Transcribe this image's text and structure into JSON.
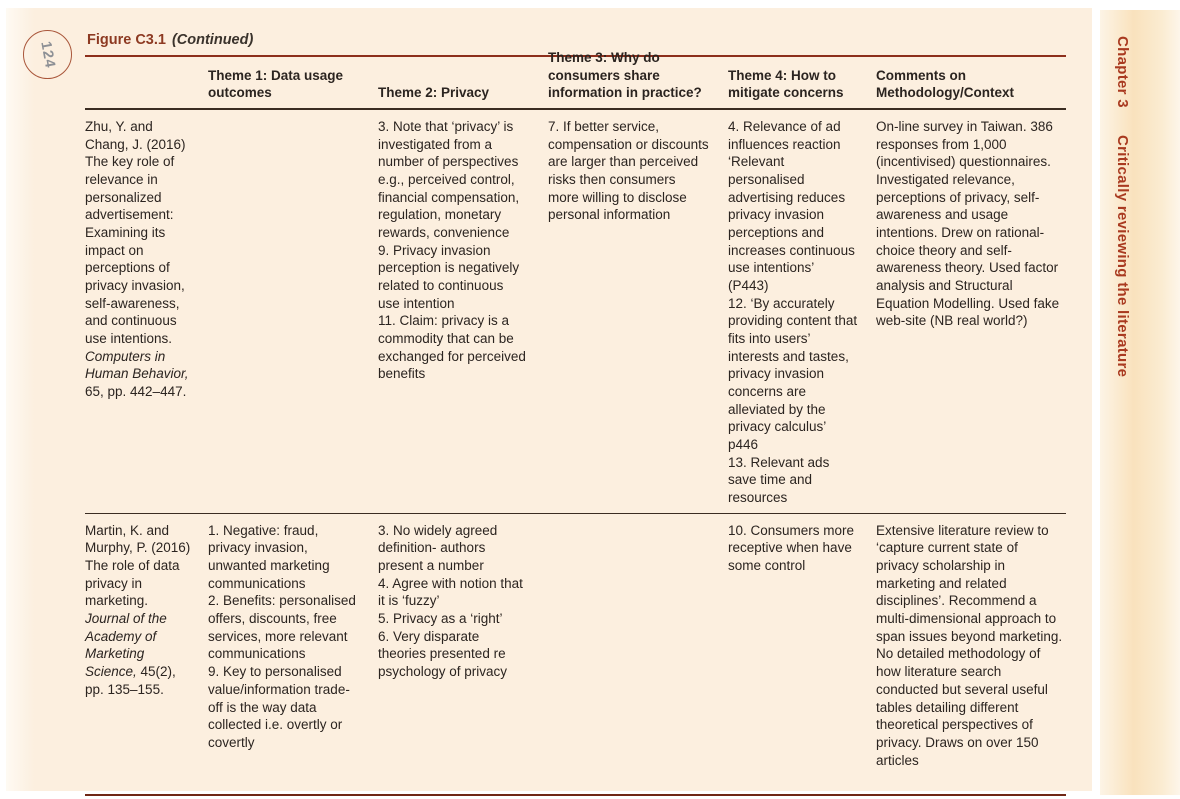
{
  "page": {
    "number": "124"
  },
  "figure": {
    "label": "Figure C3.1",
    "continued": "(Continued)"
  },
  "sidebar": {
    "chapter": "Chapter 3",
    "title": "Critically reviewing the literature"
  },
  "colors": {
    "page_background": "#fcefdf",
    "tab_background": "#f9e2bd",
    "accent_rust": "#a93a20",
    "rule_red": "#8d2f1c",
    "rule_dark": "#3b2d22",
    "text": "#2b2420"
  },
  "table": {
    "headers": [
      "",
      "Theme 1: Data usage outcomes",
      "Theme 2: Privacy",
      "Theme 3: Why do consumers share information in practice?",
      "Theme 4: How to mitigate concerns",
      "Comments on Methodology/Context"
    ],
    "rows": [
      {
        "citation": {
          "before": "Zhu, Y. and Chang, J. (2016) The key role of relevance in personalized advertisement: Examining its impact on perceptions of privacy invasion, self-awareness, and continuous use intentions. ",
          "italic": "Computers in Human Behavior,",
          "after": " 65, pp. 442–447."
        },
        "theme1": "",
        "theme2": "3. Note that ‘privacy’ is investigated from a number of perspectives e.g., perceived control, financial compensation, regulation, monetary rewards, convenience\n9. Privacy invasion perception is negatively related to continuous use intention\n11. Claim: privacy is a commodity that can be exchanged for perceived benefits",
        "theme3": "7. If better service, compensation or discounts are larger than perceived risks then consumers more willing to disclose personal information",
        "theme4": "4. Relevance of ad influences reaction ‘Relevant personalised advertising reduces privacy invasion perceptions and increases continuous use intentions’ (P443)\n12. ‘By accurately providing content that fits into users’ interests and tastes, privacy invasion concerns are alleviated by the privacy calculus’ p446\n13. Relevant ads save time and resources",
        "comments": "On-line survey in Taiwan. 386 responses from 1,000 (incentivised) questionnaires. Investigated relevance, perceptions of privacy, self-awareness and usage intentions. Drew on rational-choice theory and self-awareness theory. Used factor analysis and Structural Equation Modelling. Used fake web-site (NB real world?)"
      },
      {
        "citation": {
          "before": "Martin, K. and Murphy, P. (2016) The role of data privacy in marketing. ",
          "italic": "Journal of the Academy of Marketing Science,",
          "after": " 45(2), pp. 135–155."
        },
        "theme1": "1. Negative: fraud, privacy invasion, unwanted marketing communications\n2. Benefits: personalised offers, discounts, free services, more relevant communications\n9. Key to personalised value/information trade-off is the way data collected i.e. overtly or covertly",
        "theme2": "3. No widely agreed definition- authors present a number\n4. Agree with notion that it is ‘fuzzy’\n5. Privacy as a ‘right’\n6. Very disparate theories presented re psychology of privacy",
        "theme3": "",
        "theme4": "10. Consumers more receptive when have some control",
        "comments": "Extensive literature review to ‘capture current state of privacy scholarship in marketing and related disciplines’. Recommend a multi-dimensional approach to span issues beyond marketing. No detailed methodology of how literature search conducted but several useful tables detailing different theoretical perspectives of privacy. Draws on over 150 articles"
      }
    ]
  }
}
